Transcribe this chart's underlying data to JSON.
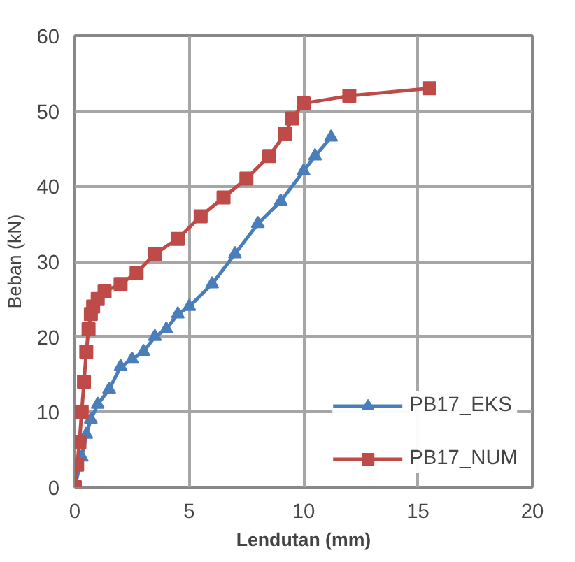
{
  "chart_data": {
    "type": "line",
    "xlabel": "Lendutan (mm)",
    "ylabel": "Beban (kN)",
    "xlim": [
      0,
      20
    ],
    "ylim": [
      0,
      60
    ],
    "xticks": [
      0,
      5,
      10,
      15,
      20
    ],
    "yticks": [
      0,
      10,
      20,
      30,
      40,
      50,
      60
    ],
    "grid": true,
    "legend": "bottom right",
    "line_style": "solid",
    "series": [
      {
        "name": "PB17_EKS",
        "color": "#4a7ebb",
        "marker": "triangle",
        "x": [
          0,
          0.3,
          0.5,
          0.7,
          1,
          1.5,
          2,
          2.5,
          3,
          3.5,
          4,
          4.5,
          5,
          6,
          7,
          8,
          9,
          10,
          10.5,
          11.2
        ],
        "values": [
          0,
          4,
          7,
          9,
          11,
          13,
          16,
          17,
          18,
          20,
          21,
          23,
          24,
          27,
          31,
          35,
          38,
          42,
          44,
          46.5
        ]
      },
      {
        "name": "PB17_NUM",
        "color": "#be4b48",
        "marker": "square",
        "x": [
          0,
          0.1,
          0.2,
          0.3,
          0.4,
          0.5,
          0.6,
          0.7,
          0.8,
          1.0,
          1.3,
          2,
          2.7,
          3.5,
          4.5,
          5.5,
          6.5,
          7.5,
          8.5,
          9.2,
          9.5,
          10,
          12,
          15.5
        ],
        "values": [
          0,
          3,
          6,
          10,
          14,
          18,
          21,
          23,
          24,
          25,
          26,
          27,
          28.5,
          31,
          33,
          36,
          38.5,
          41,
          44,
          47,
          49,
          51,
          52,
          53
        ]
      }
    ]
  }
}
